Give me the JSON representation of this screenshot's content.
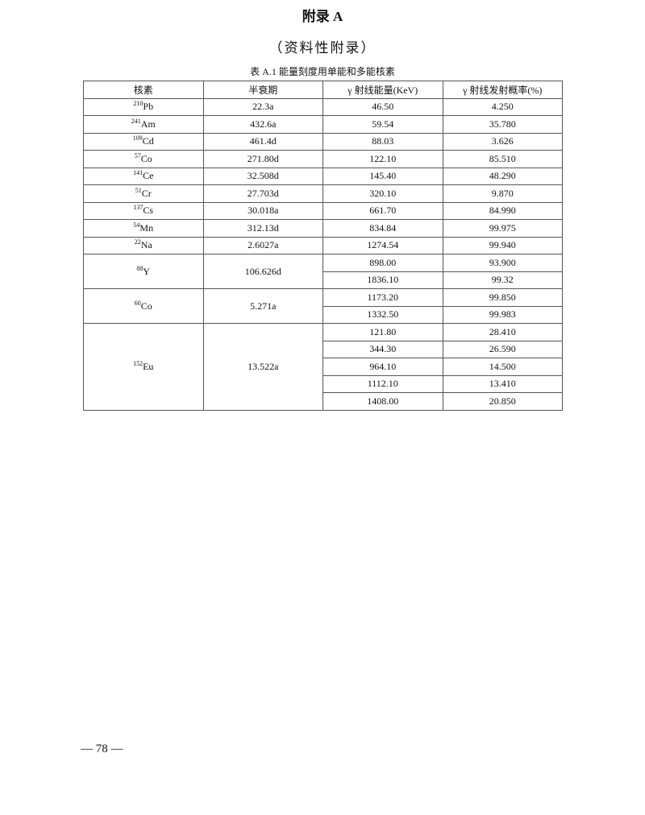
{
  "title": "附录 A",
  "subtitle": "（资料性附录）",
  "caption": "表 A.1  能量刻度用单能和多能核素",
  "table": {
    "headers": [
      "核素",
      "半衰期",
      "γ 射线能量(KeV)",
      "γ 射线发射概率(%)"
    ],
    "rows": [
      {
        "mass": "210",
        "element": "Pb",
        "half_life": "22.3a",
        "lines": [
          [
            "46.50",
            "4.250"
          ]
        ]
      },
      {
        "mass": "241",
        "element": "Am",
        "half_life": "432.6a",
        "lines": [
          [
            "59.54",
            "35.780"
          ]
        ]
      },
      {
        "mass": "109",
        "element": "Cd",
        "half_life": "461.4d",
        "lines": [
          [
            "88.03",
            "3.626"
          ]
        ]
      },
      {
        "mass": "57",
        "element": "Co",
        "half_life": "271.80d",
        "lines": [
          [
            "122.10",
            "85.510"
          ]
        ]
      },
      {
        "mass": "141",
        "element": "Ce",
        "half_life": "32.508d",
        "lines": [
          [
            "145.40",
            "48.290"
          ]
        ]
      },
      {
        "mass": "51",
        "element": "Cr",
        "half_life": "27.703d",
        "lines": [
          [
            "320.10",
            "9.870"
          ]
        ]
      },
      {
        "mass": "137",
        "element": "Cs",
        "half_life": "30.018a",
        "lines": [
          [
            "661.70",
            "84.990"
          ]
        ]
      },
      {
        "mass": "54",
        "element": "Mn",
        "half_life": "312.13d",
        "lines": [
          [
            "834.84",
            "99.975"
          ]
        ]
      },
      {
        "mass": "22",
        "element": "Na",
        "half_life": "2.6027a",
        "lines": [
          [
            "1274.54",
            "99.940"
          ]
        ]
      },
      {
        "mass": "88",
        "element": "Y",
        "half_life": "106.626d",
        "lines": [
          [
            "898.00",
            "93.900"
          ],
          [
            "1836.10",
            "99.32"
          ]
        ]
      },
      {
        "mass": "60",
        "element": "Co",
        "half_life": "5.271a",
        "lines": [
          [
            "1173.20",
            "99.850"
          ],
          [
            "1332.50",
            "99.983"
          ]
        ]
      },
      {
        "mass": "152",
        "element": "Eu",
        "half_life": "13.522a",
        "lines": [
          [
            "121.80",
            "28.410"
          ],
          [
            "344.30",
            "26.590"
          ],
          [
            "964.10",
            "14.500"
          ],
          [
            "1112.10",
            "13.410"
          ],
          [
            "1408.00",
            "20.850"
          ]
        ]
      }
    ]
  },
  "page_number": "—  78  —"
}
